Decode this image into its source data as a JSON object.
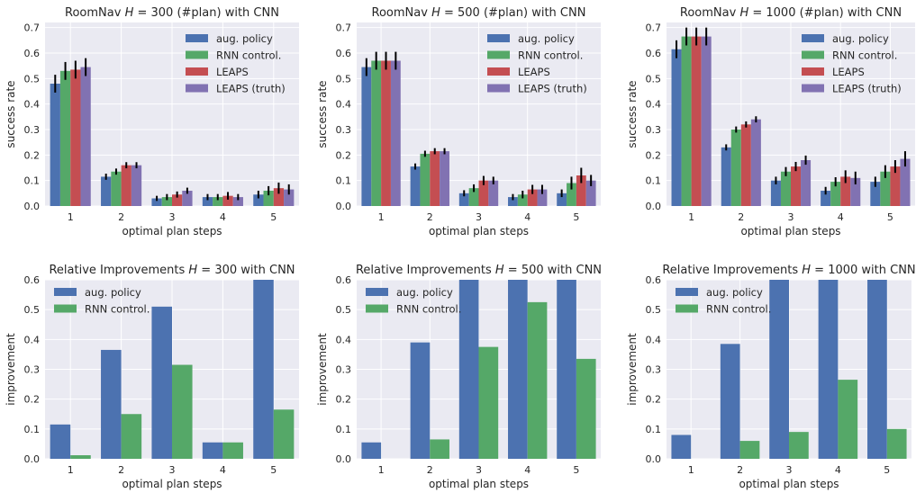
{
  "colors": {
    "panel_bg": "#EAEAF2",
    "grid": "#FFFFFF",
    "aug_policy": "#4C72B0",
    "rnn_control": "#55A868",
    "leaps": "#C44E52",
    "leaps_truth": "#8172B2",
    "error_bar": "#000000"
  },
  "chart_data": [
    {
      "type": "bar",
      "title": "RoomNav H = 300 (#plan) with CNN",
      "title_parts": [
        "RoomNav ",
        "H",
        " = 300 (#plan) with CNN"
      ],
      "xlabel": "optimal plan steps",
      "ylabel": "success rate",
      "categories": [
        "1",
        "2",
        "3",
        "4",
        "5"
      ],
      "ylim": [
        0,
        0.72
      ],
      "yticks": [
        "0.0",
        "0.1",
        "0.2",
        "0.3",
        "0.4",
        "0.5",
        "0.6",
        "0.7"
      ],
      "legend_position": "top-right",
      "grid": true,
      "series": [
        {
          "name": "aug. policy",
          "color": "#4C72B0",
          "values": [
            0.48,
            0.115,
            0.03,
            0.035,
            0.045
          ],
          "errors": [
            0.035,
            0.012,
            0.01,
            0.012,
            0.015
          ]
        },
        {
          "name": "RNN control.",
          "color": "#55A868",
          "values": [
            0.53,
            0.135,
            0.035,
            0.035,
            0.06
          ],
          "errors": [
            0.035,
            0.012,
            0.012,
            0.012,
            0.018
          ]
        },
        {
          "name": "LEAPS",
          "color": "#C44E52",
          "values": [
            0.535,
            0.16,
            0.045,
            0.04,
            0.07
          ],
          "errors": [
            0.035,
            0.012,
            0.012,
            0.015,
            0.022
          ]
        },
        {
          "name": "LEAPS (truth)",
          "color": "#8172B2",
          "values": [
            0.545,
            0.16,
            0.06,
            0.035,
            0.065
          ],
          "errors": [
            0.035,
            0.012,
            0.012,
            0.012,
            0.02
          ]
        }
      ]
    },
    {
      "type": "bar",
      "title": "RoomNav H = 500 (#plan) with CNN",
      "title_parts": [
        "RoomNav ",
        "H",
        " = 500 (#plan) with CNN"
      ],
      "xlabel": "optimal plan steps",
      "ylabel": "success rate",
      "categories": [
        "1",
        "2",
        "3",
        "4",
        "5"
      ],
      "ylim": [
        0,
        0.72
      ],
      "yticks": [
        "0.0",
        "0.1",
        "0.2",
        "0.3",
        "0.4",
        "0.5",
        "0.6",
        "0.7"
      ],
      "legend_position": "top-right",
      "grid": true,
      "series": [
        {
          "name": "aug. policy",
          "color": "#4C72B0",
          "values": [
            0.545,
            0.155,
            0.05,
            0.035,
            0.05
          ],
          "errors": [
            0.035,
            0.012,
            0.012,
            0.012,
            0.015
          ]
        },
        {
          "name": "RNN control.",
          "color": "#55A868",
          "values": [
            0.57,
            0.205,
            0.07,
            0.045,
            0.09
          ],
          "errors": [
            0.035,
            0.012,
            0.015,
            0.015,
            0.025
          ]
        },
        {
          "name": "LEAPS",
          "color": "#C44E52",
          "values": [
            0.57,
            0.215,
            0.1,
            0.065,
            0.12
          ],
          "errors": [
            0.035,
            0.012,
            0.018,
            0.018,
            0.03
          ]
        },
        {
          "name": "LEAPS (truth)",
          "color": "#8172B2",
          "values": [
            0.57,
            0.215,
            0.1,
            0.065,
            0.1
          ],
          "errors": [
            0.035,
            0.012,
            0.015,
            0.018,
            0.022
          ]
        }
      ]
    },
    {
      "type": "bar",
      "title": "RoomNav H = 1000 (#plan) with CNN",
      "title_parts": [
        "RoomNav ",
        "H",
        " = 1000 (#plan) with CNN"
      ],
      "xlabel": "optimal plan steps",
      "ylabel": "success rate",
      "categories": [
        "1",
        "2",
        "3",
        "4",
        "5"
      ],
      "ylim": [
        0,
        0.72
      ],
      "yticks": [
        "0.0",
        "0.1",
        "0.2",
        "0.3",
        "0.4",
        "0.5",
        "0.6",
        "0.7"
      ],
      "legend_position": "top-right",
      "grid": true,
      "series": [
        {
          "name": "aug. policy",
          "color": "#4C72B0",
          "values": [
            0.615,
            0.23,
            0.1,
            0.06,
            0.095
          ],
          "errors": [
            0.035,
            0.012,
            0.015,
            0.015,
            0.02
          ]
        },
        {
          "name": "RNN control.",
          "color": "#55A868",
          "values": [
            0.665,
            0.3,
            0.135,
            0.095,
            0.135
          ],
          "errors": [
            0.035,
            0.012,
            0.018,
            0.018,
            0.025
          ]
        },
        {
          "name": "LEAPS",
          "color": "#C44E52",
          "values": [
            0.665,
            0.32,
            0.155,
            0.115,
            0.155
          ],
          "errors": [
            0.035,
            0.012,
            0.018,
            0.025,
            0.025
          ]
        },
        {
          "name": "LEAPS (truth)",
          "color": "#8172B2",
          "values": [
            0.665,
            0.34,
            0.18,
            0.11,
            0.185
          ],
          "errors": [
            0.035,
            0.012,
            0.018,
            0.025,
            0.03
          ]
        }
      ]
    },
    {
      "type": "bar",
      "title": "Relative Improvements H = 300 with CNN",
      "title_parts": [
        "Relative Improvements ",
        "H",
        " = 300 with CNN"
      ],
      "xlabel": "optimal plan steps",
      "ylabel": "improvement",
      "categories": [
        "1",
        "2",
        "3",
        "4",
        "5"
      ],
      "ylim": [
        0,
        0.6
      ],
      "yticks": [
        "0.0",
        "0.1",
        "0.2",
        "0.3",
        "0.4",
        "0.5",
        "0.6"
      ],
      "legend_position": "top-left",
      "grid": true,
      "series": [
        {
          "name": "aug. policy",
          "color": "#4C72B0",
          "values": [
            0.115,
            0.365,
            0.51,
            0.055,
            0.6
          ]
        },
        {
          "name": "RNN control.",
          "color": "#55A868",
          "values": [
            0.012,
            0.15,
            0.315,
            0.055,
            0.165
          ]
        }
      ]
    },
    {
      "type": "bar",
      "title": "Relative Improvements H = 500 with CNN",
      "title_parts": [
        "Relative Improvements ",
        "H",
        " = 500 with CNN"
      ],
      "xlabel": "optimal plan steps",
      "ylabel": "improvement",
      "categories": [
        "1",
        "2",
        "3",
        "4",
        "5"
      ],
      "ylim": [
        0,
        0.6
      ],
      "yticks": [
        "0.0",
        "0.1",
        "0.2",
        "0.3",
        "0.4",
        "0.5",
        "0.6"
      ],
      "legend_position": "top-left",
      "grid": true,
      "series": [
        {
          "name": "aug. policy",
          "color": "#4C72B0",
          "values": [
            0.055,
            0.39,
            0.6,
            0.6,
            0.6
          ]
        },
        {
          "name": "RNN control.",
          "color": "#55A868",
          "values": [
            0.0,
            0.065,
            0.375,
            0.525,
            0.335
          ]
        }
      ]
    },
    {
      "type": "bar",
      "title": "Relative Improvements H = 1000 with CNN",
      "title_parts": [
        "Relative Improvements ",
        "H",
        " = 1000 with CNN"
      ],
      "xlabel": "optimal plan steps",
      "ylabel": "improvement",
      "categories": [
        "1",
        "2",
        "3",
        "4",
        "5"
      ],
      "ylim": [
        0,
        0.6
      ],
      "yticks": [
        "0.0",
        "0.1",
        "0.2",
        "0.3",
        "0.4",
        "0.5",
        "0.6"
      ],
      "legend_position": "top-left",
      "grid": true,
      "series": [
        {
          "name": "aug. policy",
          "color": "#4C72B0",
          "values": [
            0.08,
            0.385,
            0.6,
            0.6,
            0.6
          ]
        },
        {
          "name": "RNN control.",
          "color": "#55A868",
          "values": [
            0.0,
            0.06,
            0.09,
            0.265,
            0.1
          ]
        }
      ]
    }
  ]
}
